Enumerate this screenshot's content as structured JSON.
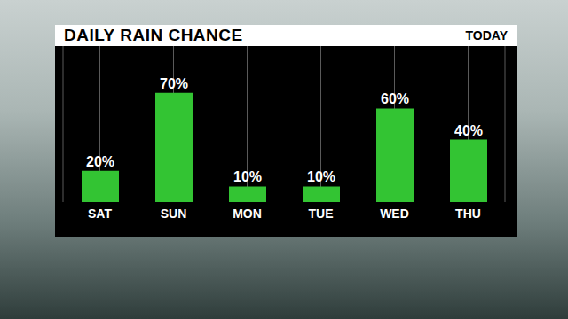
{
  "chart_data": {
    "type": "bar",
    "title": "DAILY RAIN CHANCE",
    "subtitle": "TODAY",
    "categories": [
      "SAT",
      "SUN",
      "MON",
      "TUE",
      "WED",
      "THU"
    ],
    "values": [
      20,
      70,
      10,
      10,
      60,
      40
    ],
    "value_labels": [
      "20%",
      "70%",
      "10%",
      "10%",
      "60%",
      "40%"
    ],
    "color": "#33c433",
    "ylim": [
      0,
      100
    ],
    "grid": true,
    "data_labels": true,
    "tick_labels": "x"
  }
}
